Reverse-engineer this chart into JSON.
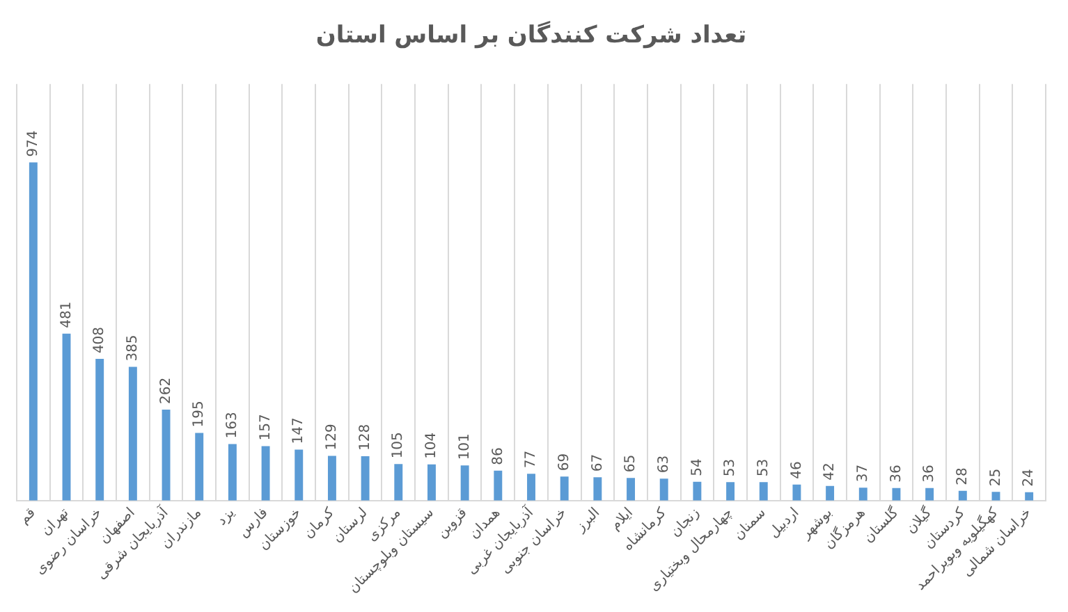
{
  "chart_data": {
    "type": "bar",
    "title": "تعداد شرکت کنندگان بر اساس استان",
    "categories": [
      "قم",
      "تهران",
      "خراسان رضوی",
      "اصفهان",
      "آذربایجان شرقی",
      "مازندران",
      "یزد",
      "فارس",
      "خوزستان",
      "کرمان",
      "لرستان",
      "مرکزی",
      "سیستان وبلوچستان",
      "قزوین",
      "همدان",
      "آذربایجان غربی",
      "خراسان جنوبی",
      "البرز",
      "ایلام",
      "کرمانشاه",
      "زنجان",
      "چهارمحال وبختیاری",
      "سمنان",
      "اردبیل",
      "بوشهر",
      "هرمزگان",
      "گلستان",
      "گیلان",
      "کردستان",
      "کهگیلویه وبویراحمد",
      "خراسان شمالی"
    ],
    "values": [
      974,
      481,
      408,
      385,
      262,
      195,
      163,
      157,
      147,
      129,
      128,
      105,
      104,
      101,
      86,
      77,
      69,
      67,
      65,
      63,
      54,
      53,
      53,
      46,
      42,
      37,
      36,
      36,
      28,
      25,
      24
    ],
    "color": "#5b9bd5",
    "data_labels": true,
    "grid": "x",
    "legend": false
  }
}
